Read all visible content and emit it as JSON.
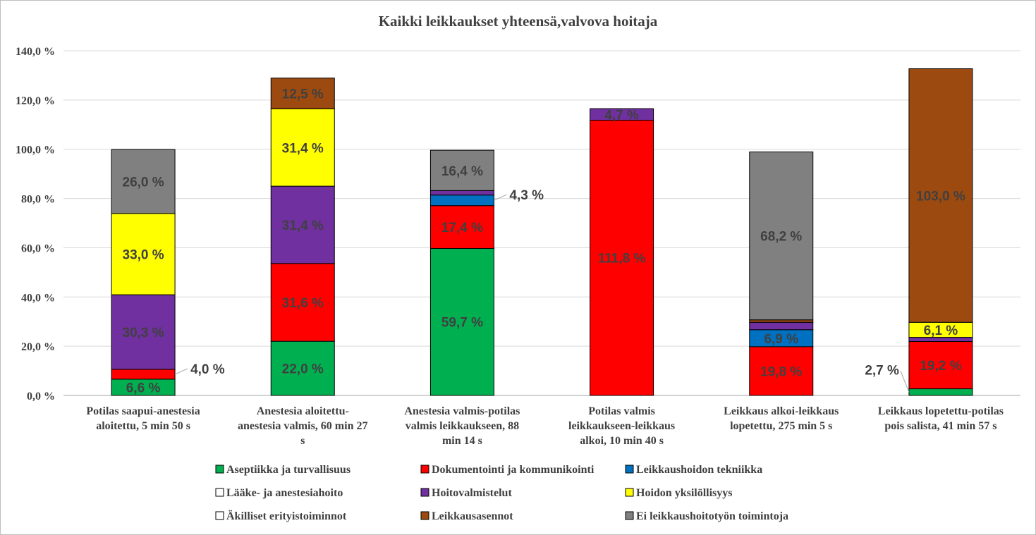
{
  "chart_data": {
    "type": "bar",
    "stacked": true,
    "title": "Kaikki leikkaukset yhteensä,valvova hoitaja",
    "ylim": [
      0,
      140
    ],
    "yticks": [
      "0,0 %",
      "20,0 %",
      "40,0 %",
      "60,0 %",
      "80,0 %",
      "100,0 %",
      "120,0 %",
      "140,0 %"
    ],
    "grid": true,
    "legend_position": "bottom",
    "categories": [
      [
        "Potilas saapui-anestesia",
        "aloitettu, 5 min 50 s"
      ],
      [
        "Anestesia aloitettu-",
        "anestesia valmis, 60 min 27",
        "s"
      ],
      [
        "Anestesia valmis-potilas",
        "valmis leikkaukseen, 88",
        "min 14 s"
      ],
      [
        "Potilas valmis",
        "leikkaukseen-leikkaus",
        "alkoi, 10 min 40 s"
      ],
      [
        "Leikkaus alkoi-leikkaus",
        "lopetettu, 275 min 5 s"
      ],
      [
        "Leikkaus lopetettu-potilas",
        "pois salista, 41 min 57 s"
      ]
    ],
    "series": [
      {
        "name": "Aseptiikka ja turvallisuus",
        "color": "#00b050",
        "values": [
          6.6,
          22.0,
          59.7,
          0,
          0,
          2.7
        ],
        "labels": [
          "6,6 %",
          "22,0 %",
          "59,7 %",
          "",
          "",
          "2,7 %"
        ]
      },
      {
        "name": "Dokumentointi ja kommunikointi",
        "color": "#ff0000",
        "values": [
          4.0,
          31.6,
          17.4,
          111.8,
          19.8,
          19.2
        ],
        "labels": [
          "4,0 %",
          "31,6 %",
          "17,4 %",
          "111,8 %",
          "19,8 %",
          "19,2 %"
        ]
      },
      {
        "name": "Leikkaushoidon tekniikka",
        "color": "#0070c0",
        "values": [
          0,
          0,
          4.3,
          0,
          6.9,
          0
        ],
        "labels": [
          "",
          "",
          "4,3 %",
          "",
          "6,9 %",
          ""
        ]
      },
      {
        "name": "Lääke- ja anestesiahoito",
        "color": "#ffffff",
        "values": [
          0,
          0,
          0,
          0,
          0,
          0
        ],
        "labels": [
          "",
          "",
          "",
          "",
          "",
          ""
        ]
      },
      {
        "name": "Hoitovalmistelut",
        "color": "#7030a0",
        "values": [
          30.3,
          31.4,
          1.8,
          4.7,
          3.0,
          1.7
        ],
        "labels": [
          "30,3 %",
          "31,4 %",
          "",
          "4,7 %",
          "",
          ""
        ]
      },
      {
        "name": "Hoidon yksilöllisyys",
        "color": "#ffff00",
        "values": [
          33.0,
          31.4,
          0,
          0,
          0,
          6.1
        ],
        "labels": [
          "33,0 %",
          "31,4 %",
          "",
          "",
          "",
          "6,1 %"
        ]
      },
      {
        "name": "Äkilliset erityistoiminnot",
        "color": "#ffffff",
        "values": [
          0,
          0,
          0,
          0,
          0,
          0
        ],
        "labels": [
          "",
          "",
          "",
          "",
          "",
          ""
        ]
      },
      {
        "name": "Leikkausasennot",
        "color": "#9c4a10",
        "values": [
          0,
          12.5,
          0,
          0,
          1.0,
          103.0
        ],
        "labels": [
          "",
          "12,5 %",
          "",
          "",
          "",
          "103,0 %"
        ]
      },
      {
        "name": "Ei leikkaushoitotyön toimintoja",
        "color": "#808080",
        "values": [
          26.0,
          0,
          16.4,
          0,
          68.2,
          0
        ],
        "labels": [
          "26,0 %",
          "",
          "16,4 %",
          "",
          "68,2 %",
          ""
        ]
      }
    ]
  }
}
